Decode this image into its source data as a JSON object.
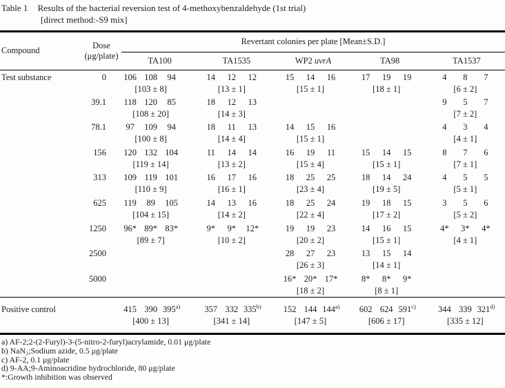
{
  "title": {
    "label": "Table 1",
    "caption": "Results of the bacterial reversion test of 4-methoxybenzaldehyde (1st trial)",
    "subtitle": "[direct method:-S9 mix]"
  },
  "table": {
    "compound_header": "Compound",
    "dose_header_line1": "Dose",
    "dose_header_line2": "(μg/plate)",
    "revertant_header": "Revertant colonies per plate [Mean±S.D.]",
    "compound_label": "Test substance",
    "positive_control_label": "Positive control",
    "strains": [
      {
        "id": "ta100",
        "text": "TA100",
        "italic": ""
      },
      {
        "id": "ta1535",
        "text": "TA1535",
        "italic": ""
      },
      {
        "id": "wp2-uvra",
        "text": "WP2 ",
        "italic": "uvrA"
      },
      {
        "id": "ta98",
        "text": "TA98",
        "italic": ""
      },
      {
        "id": "ta1537",
        "text": "TA1537",
        "italic": ""
      }
    ],
    "rows": [
      {
        "dose": "0",
        "cells": [
          {
            "values": [
              "106",
              "108",
              "94"
            ],
            "mean": "[103 ± 8]"
          },
          {
            "values": [
              "14",
              "12",
              "12"
            ],
            "mean": "[13 ± 1]"
          },
          {
            "values": [
              "15",
              "14",
              "16"
            ],
            "mean": "[15 ± 1]"
          },
          {
            "values": [
              "17",
              "19",
              "19"
            ],
            "mean": "[18 ± 1]"
          },
          {
            "values": [
              "4",
              "8",
              "7"
            ],
            "mean": "[6 ± 2]"
          }
        ]
      },
      {
        "dose": "39.1",
        "cells": [
          {
            "values": [
              "118",
              "120",
              "85"
            ],
            "mean": "[108 ± 20]"
          },
          {
            "values": [
              "18",
              "12",
              "13"
            ],
            "mean": "[14 ± 3]"
          },
          null,
          null,
          {
            "values": [
              "9",
              "5",
              "7"
            ],
            "mean": "[7 ± 2]"
          }
        ]
      },
      {
        "dose": "78.1",
        "cells": [
          {
            "values": [
              "97",
              "109",
              "94"
            ],
            "mean": "[100 ± 8]"
          },
          {
            "values": [
              "18",
              "11",
              "13"
            ],
            "mean": "[14 ± 4]"
          },
          {
            "values": [
              "14",
              "15",
              "16"
            ],
            "mean": "[15 ± 1]"
          },
          null,
          {
            "values": [
              "4",
              "3",
              "4"
            ],
            "mean": "[4 ± 1]"
          }
        ]
      },
      {
        "dose": "156",
        "cells": [
          {
            "values": [
              "120",
              "132",
              "104"
            ],
            "mean": "[119 ± 14]"
          },
          {
            "values": [
              "11",
              "14",
              "14"
            ],
            "mean": "[13 ± 2]"
          },
          {
            "values": [
              "16",
              "19",
              "11"
            ],
            "mean": "[15 ± 4]"
          },
          {
            "values": [
              "15",
              "14",
              "15"
            ],
            "mean": "[15 ± 1]"
          },
          {
            "values": [
              "8",
              "7",
              "6"
            ],
            "mean": "[7 ± 1]"
          }
        ]
      },
      {
        "dose": "313",
        "cells": [
          {
            "values": [
              "109",
              "119",
              "101"
            ],
            "mean": "[110 ± 9]"
          },
          {
            "values": [
              "16",
              "17",
              "16"
            ],
            "mean": "[16 ± 1]"
          },
          {
            "values": [
              "18",
              "25",
              "25"
            ],
            "mean": "[23 ± 4]"
          },
          {
            "values": [
              "18",
              "14",
              "24"
            ],
            "mean": "[19 ± 5]"
          },
          {
            "values": [
              "4",
              "5",
              "5"
            ],
            "mean": "[5 ± 1]"
          }
        ]
      },
      {
        "dose": "625",
        "cells": [
          {
            "values": [
              "119",
              "89",
              "105"
            ],
            "mean": "[104 ± 15]"
          },
          {
            "values": [
              "14",
              "13",
              "16"
            ],
            "mean": "[14 ± 2]"
          },
          {
            "values": [
              "18",
              "25",
              "24"
            ],
            "mean": "[22 ± 4]"
          },
          {
            "values": [
              "19",
              "18",
              "15"
            ],
            "mean": "[17 ± 2]"
          },
          {
            "values": [
              "3",
              "5",
              "6"
            ],
            "mean": "[5 ± 2]"
          }
        ]
      },
      {
        "dose": "1250",
        "cells": [
          {
            "values": [
              "96*",
              "89*",
              "83*"
            ],
            "mean": "[89 ± 7]"
          },
          {
            "values": [
              "9*",
              "9*",
              "12*"
            ],
            "mean": "[10 ± 2]"
          },
          {
            "values": [
              "19",
              "19",
              "23"
            ],
            "mean": "[20 ± 2]"
          },
          {
            "values": [
              "14",
              "16",
              "15"
            ],
            "mean": "[15 ± 1]"
          },
          {
            "values": [
              "4*",
              "3*",
              "4*"
            ],
            "mean": "[4 ± 1]"
          }
        ]
      },
      {
        "dose": "2500",
        "cells": [
          null,
          null,
          {
            "values": [
              "28",
              "27",
              "23"
            ],
            "mean": "[26 ± 3]"
          },
          {
            "values": [
              "13",
              "15",
              "14"
            ],
            "mean": "[14 ± 1]"
          },
          null
        ]
      },
      {
        "dose": "5000",
        "cells": [
          null,
          null,
          {
            "values": [
              "16*",
              "20*",
              "17*"
            ],
            "mean": "[18 ± 2]"
          },
          {
            "values": [
              "8*",
              "8*",
              "9*"
            ],
            "mean": "[8 ± 1]"
          },
          null
        ]
      }
    ],
    "positive_control": {
      "cells": [
        {
          "values": [
            "415",
            "390",
            "395"
          ],
          "sup": "a)",
          "mean": "[400 ± 13]"
        },
        {
          "values": [
            "357",
            "332",
            "335"
          ],
          "sup": "b)",
          "mean": "[341 ± 14]"
        },
        {
          "values": [
            "152",
            "144",
            "144"
          ],
          "sup": "a)",
          "mean": "[147 ± 5]"
        },
        {
          "values": [
            "602",
            "624",
            "591"
          ],
          "sup": "c)",
          "mean": "[606 ± 17]"
        },
        {
          "values": [
            "344",
            "339",
            "321"
          ],
          "sup": "d)",
          "mean": "[335 ± 12]"
        }
      ]
    }
  },
  "footnotes": [
    "a) AF-2;2-(2-Furyl)-3-(5-nitro-2-furyl)acrylamide, 0.01 μg/plate",
    "b) NaN₃;Sodium azide, 0.5 μg/plate",
    "c) AF-2, 0.1 μg/plate",
    "d) 9-AA;9-Aminoacridine hydrochloride, 80 μg/plate",
    "*:Growth inhibition was observed"
  ]
}
